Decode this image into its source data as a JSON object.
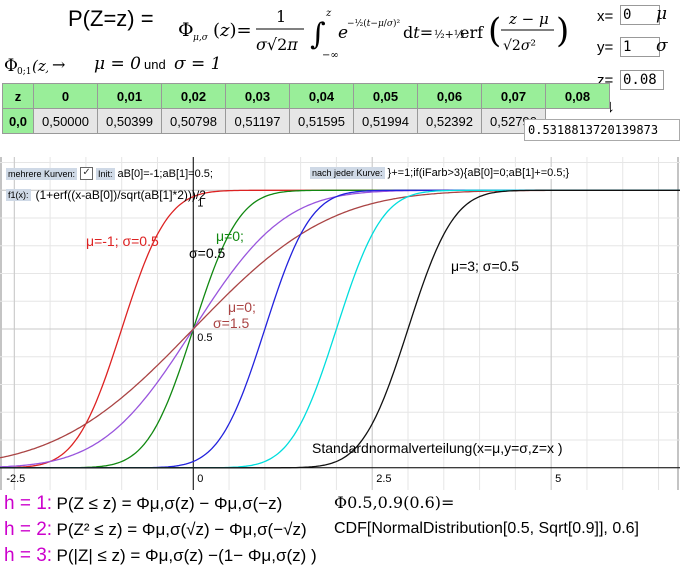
{
  "header": {
    "formula_lhs": "P(Z=z) =",
    "phi_caption_lhs": "Φ0;1(z) →",
    "phi_caption_mu": "μ = 0",
    "phi_caption_und": "und",
    "phi_caption_sigma": "σ = 1"
  },
  "params": {
    "x_label": "x=",
    "x_value": "0",
    "x_symbol": "μ",
    "y_label": "y=",
    "y_value": "1",
    "y_symbol": "σ",
    "z_label": "z=",
    "z_value": "0.08"
  },
  "table": {
    "header": [
      "z",
      "0",
      "0,01",
      "0,02",
      "0,03",
      "0,04",
      "0,05",
      "0,06",
      "0,07",
      "0,08"
    ],
    "row_label": "0,0",
    "row_values": [
      "0,50000",
      "0,50399",
      "0,50798",
      "0,51197",
      "0,51595",
      "0,51994",
      "0,52392",
      "0,52790"
    ],
    "result": "0.5318813720139873"
  },
  "controls": {
    "multi_curves_label": "mehrere Kurven:",
    "init_label": "Init:",
    "init_value": "aB[0]=-1;aB[1]=0.5;",
    "after_curve_label": "nach jeder Kurve:",
    "after_curve_value": "}+=1;if(iFarb>3){aB[0]=0;aB[1]+=0.5;}",
    "f1_label": "f1(x):",
    "f1_value": "(1+erf((x-aB[0])/sqrt(aB[1]*2)))/2"
  },
  "chart_data": {
    "type": "line",
    "xlim": [
      -2.7,
      6.8
    ],
    "ylim": [
      -0.08,
      1.12
    ],
    "x_ticks": [
      "-2.5",
      "0",
      "2.5",
      "5"
    ],
    "y_ticks": [
      "0.5",
      "1"
    ],
    "grid": true,
    "series": [
      {
        "name": "μ=-1; σ=0.5",
        "mu": -1,
        "sigma": 0.5,
        "color": "#dd2222"
      },
      {
        "mu": 0,
        "sigma": 0.5,
        "color": "#118811"
      },
      {
        "mu": 0,
        "sigma": 1.0,
        "color": "#9955dd"
      },
      {
        "mu": 0,
        "sigma": 1.5,
        "color": "#aa4444"
      },
      {
        "mu": 1,
        "sigma": 0.5,
        "color": "#2222dd"
      },
      {
        "mu": 2,
        "sigma": 0.5,
        "color": "#00dddd"
      },
      {
        "name": "μ=3; σ=0.5",
        "mu": 3,
        "sigma": 0.5,
        "color": "#111111"
      }
    ],
    "annotations": [
      {
        "text": "μ=-1; σ=0.5",
        "color": "#dd2222"
      },
      {
        "text": "μ=0;",
        "color": "#118811"
      },
      {
        "text": "σ=0.5",
        "color": "#000000"
      },
      {
        "text": "μ=0;",
        "color": "#aa4444"
      },
      {
        "text": "σ=1.5",
        "color": "#aa4444"
      },
      {
        "text": "μ=3; σ=0.5",
        "color": "#000000"
      },
      {
        "text": "Standardnormalverteilung(x=μ,y=σ,z=x )",
        "color": "#000000"
      }
    ]
  },
  "bottom": {
    "h1_label": "h = 1:",
    "h1_text": "P(Z  ≤ z) = Φμ,σ(z) − Φμ,σ(−z)",
    "h2_label": "h = 2:",
    "h2_text": "P(Z² ≤ z) = Φμ,σ(√z) − Φμ,σ(−√z)",
    "h3_label": "h = 3:",
    "h3_text": "P(|Z| ≤ z) = Φμ,σ(z) −(1− Φμ,σ(z) )",
    "phi_expr": "Φ0.5,0.9(0.6)=",
    "cdf_expr": "CDF[NormalDistribution[0.5, Sqrt[0.9]], 0.6]"
  }
}
